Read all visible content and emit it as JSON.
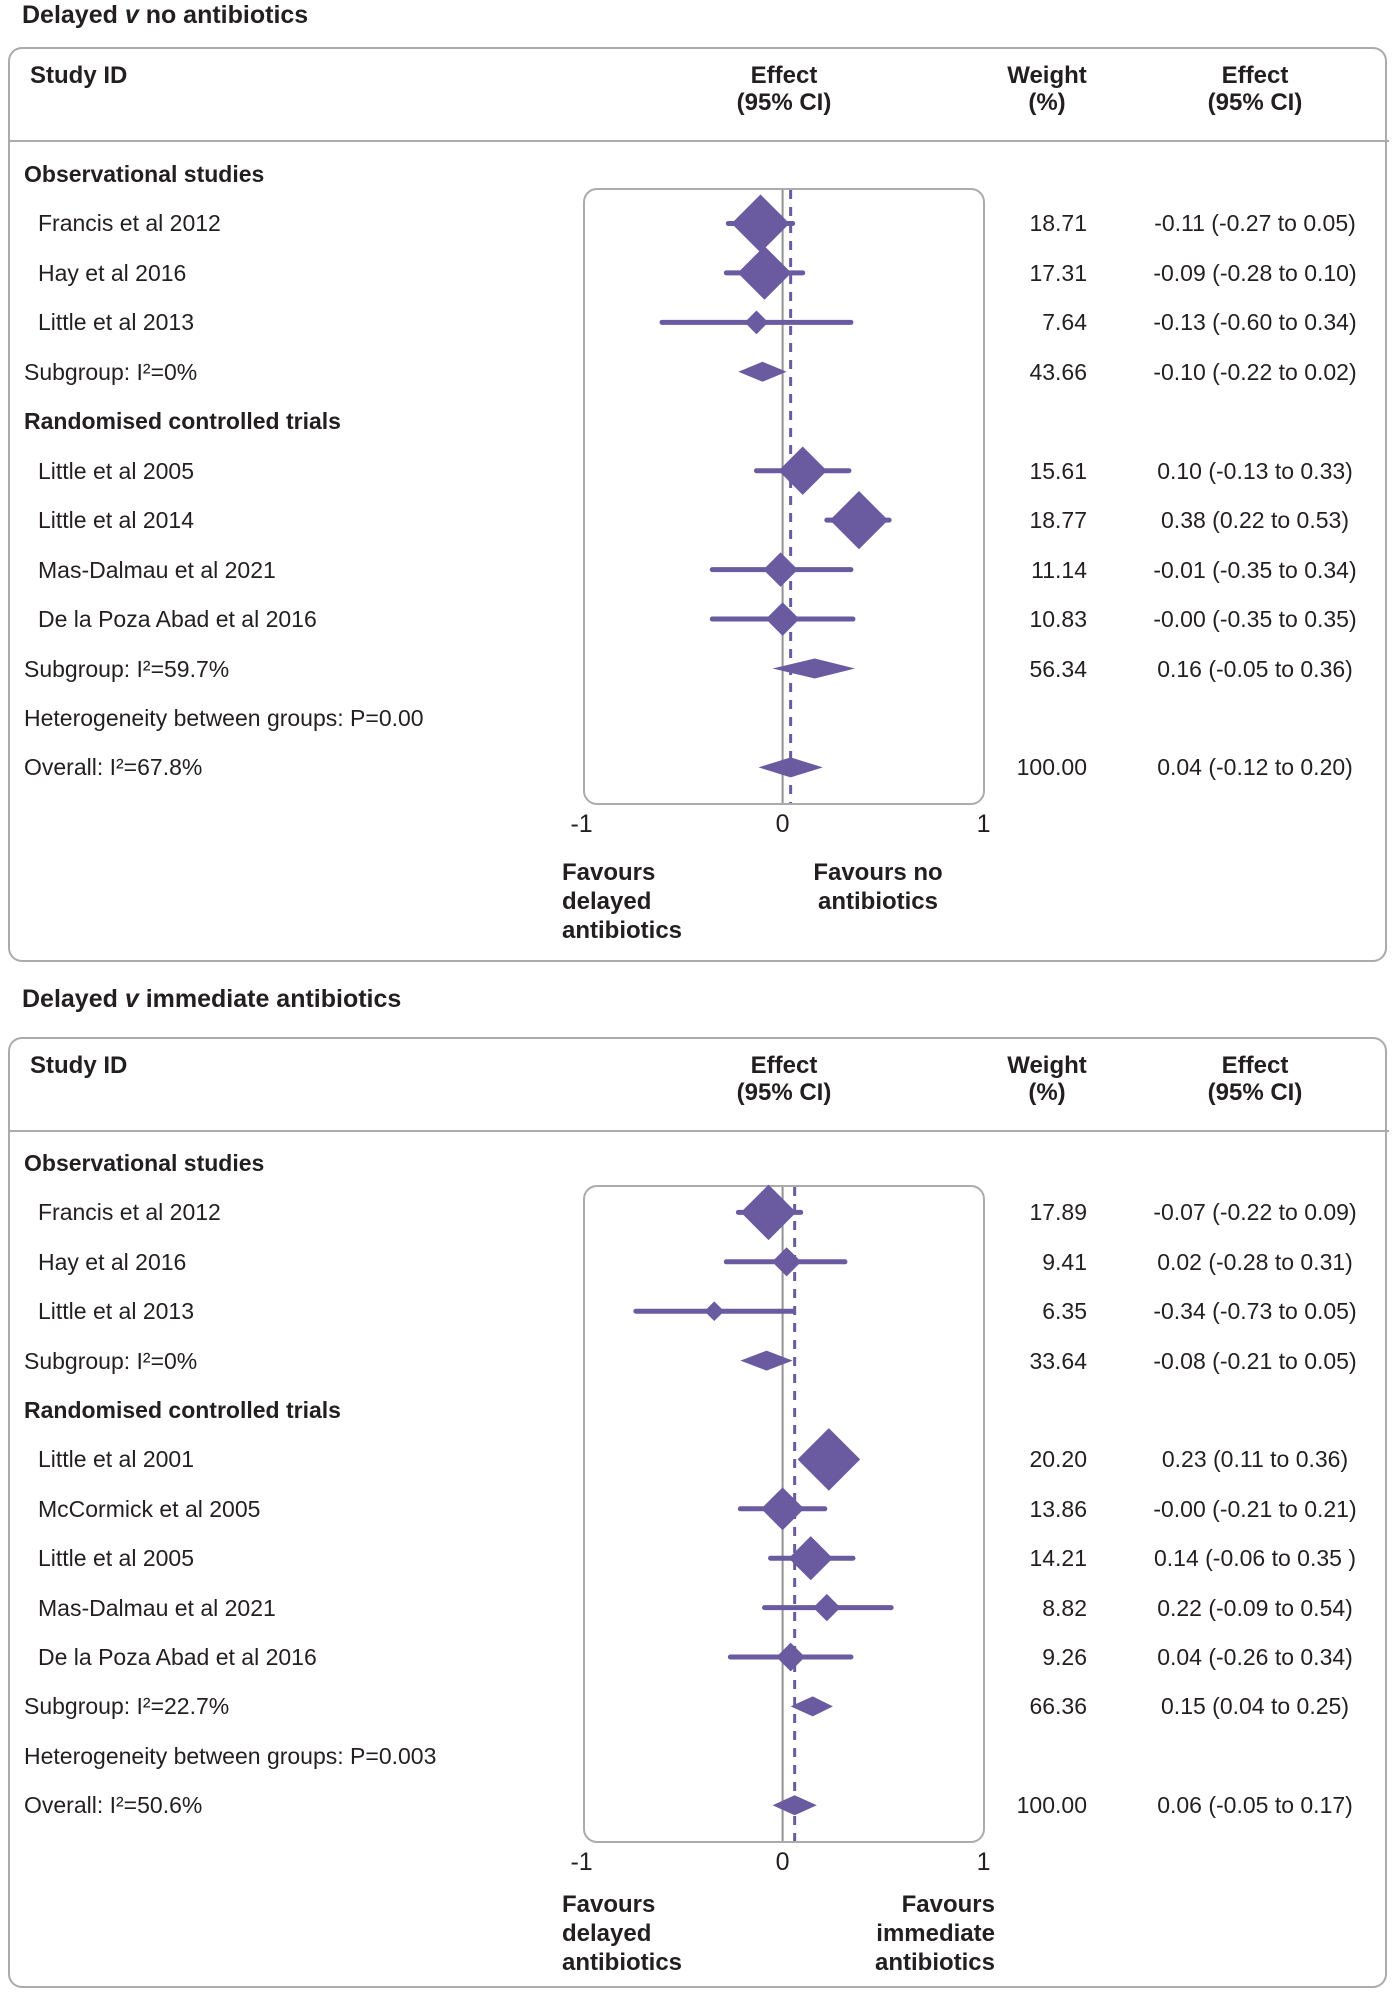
{
  "table_header": {
    "study": "Study ID",
    "effect_line1": "Effect",
    "effect_line2": "(95% CI)",
    "weight_line1": "Weight",
    "weight_line2": "(%)"
  },
  "axis": {
    "min": -1,
    "max": 1,
    "ticks": [
      "-1",
      "0",
      "1"
    ]
  },
  "colors": {
    "purple": "#6a5aa0",
    "border_gray": "#aaabac",
    "zero_line_gray": "#929292",
    "text": "#231f20"
  },
  "chart_data": [
    {
      "type": "scatter",
      "variant": "forest-plot",
      "title": "Delayed v no antibiotics",
      "title_parts": {
        "pre": "Delayed ",
        "v": "v",
        "post": " no antibiotics"
      },
      "xlim": [
        -1,
        1
      ],
      "x_ticks": [
        "-1",
        "0",
        "1"
      ],
      "zero_line": 0,
      "overall_dashed_line_at": 0.04,
      "favours_left": [
        "Favours",
        "delayed",
        "antibiotics"
      ],
      "favours_right": [
        "Favours no",
        "antibiotics"
      ],
      "rows": [
        {
          "type": "group",
          "label": "Observational studies"
        },
        {
          "type": "study",
          "label": "Francis et al 2012",
          "weight": "18.71",
          "effect_text": "-0.11 (-0.27 to 0.05)",
          "est": -0.11,
          "lo": -0.27,
          "hi": 0.05,
          "w": 18.71
        },
        {
          "type": "study",
          "label": "Hay et al 2016",
          "weight": "17.31",
          "effect_text": "-0.09 (-0.28 to 0.10)",
          "est": -0.09,
          "lo": -0.28,
          "hi": 0.1,
          "w": 17.31
        },
        {
          "type": "study",
          "label": "Little et al 2013",
          "weight": "7.64",
          "effect_text": "-0.13 (-0.60 to 0.34)",
          "est": -0.13,
          "lo": -0.6,
          "hi": 0.34,
          "w": 7.64
        },
        {
          "type": "subgroup",
          "label": "Subgroup: I²=0%",
          "weight": "43.66",
          "effect_text": "-0.10 (-0.22 to 0.02)",
          "est": -0.1,
          "lo": -0.22,
          "hi": 0.02
        },
        {
          "type": "group",
          "label": "Randomised controlled trials"
        },
        {
          "type": "study",
          "label": "Little et al 2005",
          "weight": "15.61",
          "effect_text": "0.10 (-0.13 to 0.33)",
          "est": 0.1,
          "lo": -0.13,
          "hi": 0.33,
          "w": 15.61
        },
        {
          "type": "study",
          "label": "Little et al 2014",
          "weight": "18.77",
          "effect_text": "0.38 (0.22 to 0.53)",
          "est": 0.38,
          "lo": 0.22,
          "hi": 0.53,
          "w": 18.77
        },
        {
          "type": "study",
          "label": "Mas-Dalmau et al 2021",
          "weight": "11.14",
          "effect_text": "-0.01 (-0.35 to 0.34)",
          "est": -0.01,
          "lo": -0.35,
          "hi": 0.34,
          "w": 11.14
        },
        {
          "type": "study",
          "label": "De la Poza Abad et al 2016",
          "weight": "10.83",
          "effect_text": "-0.00 (-0.35 to 0.35)",
          "est": 0.0,
          "lo": -0.35,
          "hi": 0.35,
          "w": 10.83
        },
        {
          "type": "subgroup",
          "label": "Subgroup: I²=59.7%",
          "weight": "56.34",
          "effect_text": "0.16 (-0.05 to 0.36)",
          "est": 0.16,
          "lo": -0.05,
          "hi": 0.36
        },
        {
          "type": "note",
          "label": "Heterogeneity between groups: P=0.00"
        },
        {
          "type": "overall",
          "label": "Overall: I²=67.8%",
          "weight": "100.00",
          "effect_text": "0.04 (-0.12 to 0.20)",
          "est": 0.04,
          "lo": -0.12,
          "hi": 0.2
        }
      ]
    },
    {
      "type": "scatter",
      "variant": "forest-plot",
      "title": "Delayed v immediate antibiotics",
      "title_parts": {
        "pre": "Delayed ",
        "v": "v",
        "post": " immediate antibiotics"
      },
      "xlim": [
        -1,
        1
      ],
      "x_ticks": [
        "-1",
        "0",
        "1"
      ],
      "zero_line": 0,
      "overall_dashed_line_at": 0.06,
      "favours_left": [
        "Favours",
        "delayed",
        "antibiotics"
      ],
      "favours_right": [
        "Favours",
        "immediate",
        "antibiotics"
      ],
      "rows": [
        {
          "type": "group",
          "label": "Observational studies"
        },
        {
          "type": "study",
          "label": "Francis et al 2012",
          "weight": "17.89",
          "effect_text": "-0.07 (-0.22 to 0.09)",
          "est": -0.07,
          "lo": -0.22,
          "hi": 0.09,
          "w": 17.89
        },
        {
          "type": "study",
          "label": "Hay et al 2016",
          "weight": "9.41",
          "effect_text": "0.02 (-0.28 to 0.31)",
          "est": 0.02,
          "lo": -0.28,
          "hi": 0.31,
          "w": 9.41
        },
        {
          "type": "study",
          "label": "Little et al 2013",
          "weight": "6.35",
          "effect_text": "-0.34 (-0.73 to 0.05)",
          "est": -0.34,
          "lo": -0.73,
          "hi": 0.05,
          "w": 6.35
        },
        {
          "type": "subgroup",
          "label": "Subgroup: I²=0%",
          "weight": "33.64",
          "effect_text": "-0.08 (-0.21 to 0.05)",
          "est": -0.08,
          "lo": -0.21,
          "hi": 0.05
        },
        {
          "type": "group",
          "label": "Randomised controlled trials"
        },
        {
          "type": "study",
          "label": "Little et al 2001",
          "weight": "20.20",
          "effect_text": "0.23 (0.11 to 0.36)",
          "est": 0.23,
          "lo": 0.11,
          "hi": 0.36,
          "w": 20.2
        },
        {
          "type": "study",
          "label": "McCormick et al 2005",
          "weight": "13.86",
          "effect_text": "-0.00 (-0.21 to 0.21)",
          "est": 0.0,
          "lo": -0.21,
          "hi": 0.21,
          "w": 13.86
        },
        {
          "type": "study",
          "label": "Little et al 2005",
          "weight": "14.21",
          "effect_text": "0.14 (-0.06 to 0.35 )",
          "est": 0.14,
          "lo": -0.06,
          "hi": 0.35,
          "w": 14.21
        },
        {
          "type": "study",
          "label": "Mas-Dalmau et al 2021",
          "weight": "8.82",
          "effect_text": "0.22 (-0.09 to 0.54)",
          "est": 0.22,
          "lo": -0.09,
          "hi": 0.54,
          "w": 8.82
        },
        {
          "type": "study",
          "label": "De la Poza Abad et al 2016",
          "weight": "9.26",
          "effect_text": "0.04 (-0.26 to 0.34)",
          "est": 0.04,
          "lo": -0.26,
          "hi": 0.34,
          "w": 9.26
        },
        {
          "type": "subgroup",
          "label": "Subgroup: I²=22.7%",
          "weight": "66.36",
          "effect_text": "0.15 (0.04 to 0.25)",
          "est": 0.15,
          "lo": 0.04,
          "hi": 0.25
        },
        {
          "type": "note",
          "label": "Heterogeneity between groups: P=0.003"
        },
        {
          "type": "overall",
          "label": "Overall: I²=50.6%",
          "weight": "100.00",
          "effect_text": "0.06 (-0.05 to 0.17)",
          "est": 0.06,
          "lo": -0.05,
          "hi": 0.17
        }
      ]
    }
  ]
}
